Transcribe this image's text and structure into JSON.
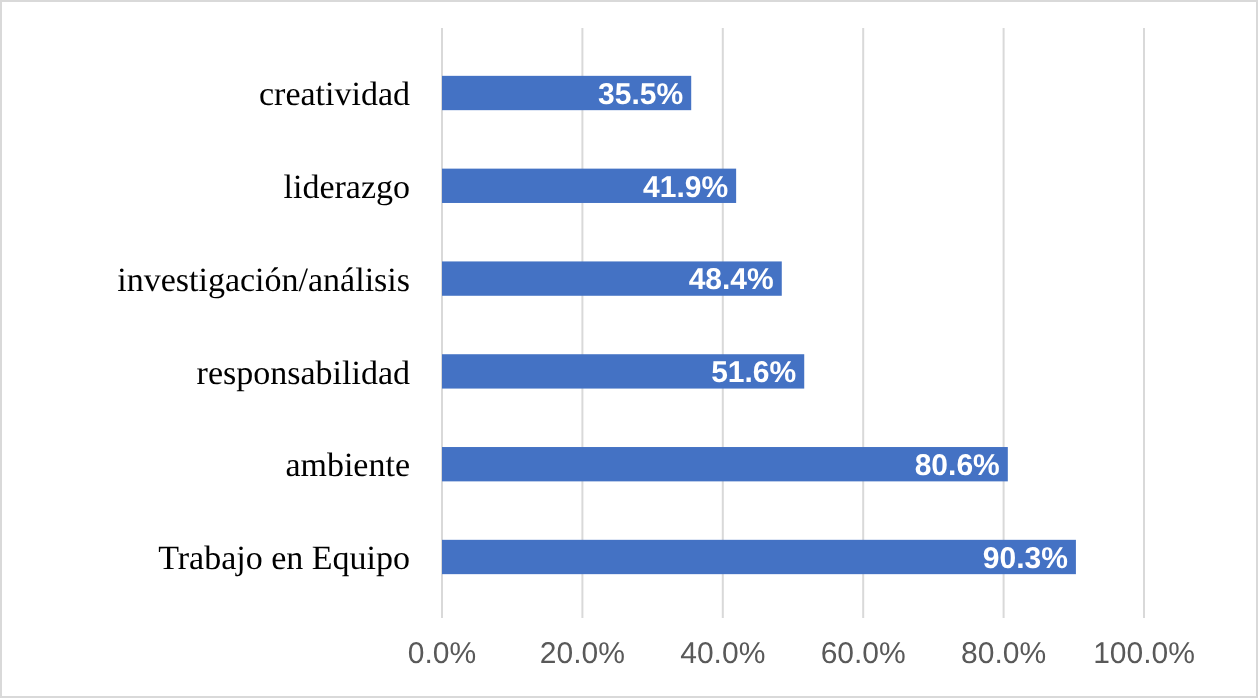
{
  "chart_data": {
    "type": "bar",
    "orientation": "horizontal",
    "categories": [
      "creatividad",
      "liderazgo",
      "investigación/análisis",
      "responsabilidad",
      "ambiente",
      "Trabajo en Equipo"
    ],
    "values": [
      35.5,
      41.9,
      48.4,
      51.6,
      80.6,
      90.3
    ],
    "value_labels": [
      "35.5%",
      "41.9%",
      "48.4%",
      "51.6%",
      "80.6%",
      "90.3%"
    ],
    "color": "#4472c4",
    "xlim": [
      0,
      100
    ],
    "xticks": [
      {
        "value": 0,
        "label": "0.0%"
      },
      {
        "value": 20,
        "label": "20.0%"
      },
      {
        "value": 40,
        "label": "40.0%"
      },
      {
        "value": 60,
        "label": "60.0%"
      },
      {
        "value": 80,
        "label": "80.0%"
      },
      {
        "value": 100,
        "label": "100.0%"
      }
    ],
    "grid": "x"
  }
}
